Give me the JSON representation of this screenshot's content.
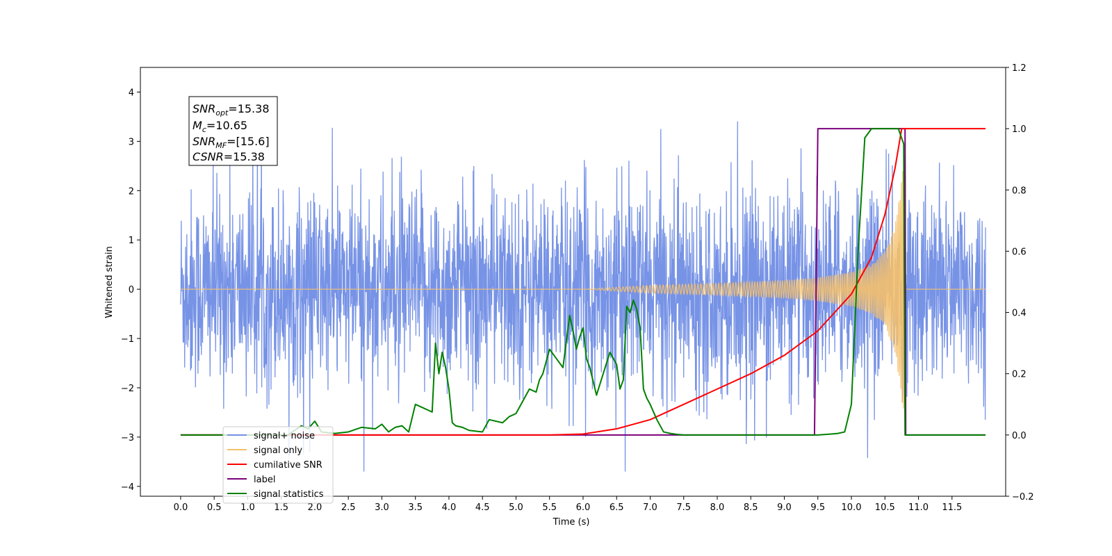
{
  "chart_data": {
    "type": "line",
    "xlabel": "Time (s)",
    "ylabel": "Whitened strain",
    "xlim": [
      -0.6,
      12.3
    ],
    "ylim": [
      -4.2,
      4.5
    ],
    "ylim_right": [
      -0.2,
      1.2
    ],
    "xticks": [
      "0.0",
      "0.5",
      "1.0",
      "1.5",
      "2.0",
      "2.5",
      "3.0",
      "3.5",
      "4.0",
      "4.5",
      "5.0",
      "5.5",
      "6.0",
      "6.5",
      "7.0",
      "7.5",
      "8.0",
      "8.5",
      "9.0",
      "9.5",
      "10.0",
      "10.5",
      "11.0",
      "11.5"
    ],
    "yticks_left": [
      "−4",
      "−3",
      "−2",
      "−1",
      "0",
      "1",
      "2",
      "3",
      "4"
    ],
    "yticks_right": [
      "−0.2",
      "0.0",
      "0.2",
      "0.4",
      "0.6",
      "0.8",
      "1.0",
      "1.2"
    ],
    "grid": false,
    "legend_position": "lower-left",
    "annotation": {
      "line1_sym": "SNR",
      "line1_sub": "opt",
      "line1_val": "=15.38",
      "line2_sym": "M",
      "line2_sub": "c",
      "line2_val": "=10.65",
      "line3_sym": "SNR",
      "line3_sub": "MF",
      "line3_val": "=[15.6]",
      "line4_sym": "CSNR",
      "line4_val": "=15.38"
    },
    "series": [
      {
        "name": "signal+ noise",
        "color": "#7793e6",
        "axis": "left",
        "description_stats": {
          "duration_s": 12.0,
          "std": 1.0
        },
        "x_range": [
          0.0,
          12.0
        ]
      },
      {
        "name": "signal only",
        "color": "#f4c06c",
        "axis": "left",
        "x_range": [
          0.0,
          12.0
        ],
        "envelope": {
          "x": [
            0.0,
            6.0,
            7.0,
            8.0,
            9.0,
            9.5,
            10.0,
            10.3,
            10.5,
            10.65,
            10.75,
            10.8,
            10.81,
            12.0
          ],
          "amp": [
            0.0,
            0.0,
            0.08,
            0.12,
            0.18,
            0.24,
            0.35,
            0.5,
            0.75,
            1.3,
            2.2,
            3.1,
            0.0,
            0.0
          ]
        }
      },
      {
        "name": "cumilative SNR",
        "color": "#ff0000",
        "axis": "right",
        "x": [
          0.0,
          5.5,
          6.0,
          6.5,
          7.0,
          7.5,
          8.0,
          8.5,
          9.0,
          9.5,
          10.0,
          10.3,
          10.5,
          10.65,
          10.75,
          10.8,
          12.0
        ],
        "y": [
          0.0,
          0.0,
          0.003,
          0.02,
          0.05,
          0.1,
          0.15,
          0.2,
          0.26,
          0.34,
          0.46,
          0.58,
          0.72,
          0.87,
          1.0,
          1.0,
          1.0
        ]
      },
      {
        "name": "label",
        "color": "#7b007b",
        "axis": "right",
        "x": [
          0.0,
          9.45,
          9.5,
          10.8,
          10.81,
          12.0
        ],
        "y": [
          0.0,
          0.0,
          1.0,
          1.0,
          0.0,
          0.0
        ]
      },
      {
        "name": "signal statistics",
        "color": "#008000",
        "axis": "right",
        "x": [
          0.0,
          1.6,
          1.8,
          1.9,
          2.0,
          2.1,
          2.3,
          2.5,
          2.7,
          2.9,
          3.0,
          3.1,
          3.2,
          3.3,
          3.4,
          3.5,
          3.6,
          3.7,
          3.75,
          3.8,
          3.85,
          3.9,
          3.95,
          4.0,
          4.05,
          4.1,
          4.2,
          4.3,
          4.5,
          4.6,
          4.8,
          4.9,
          5.0,
          5.1,
          5.2,
          5.3,
          5.35,
          5.4,
          5.5,
          5.6,
          5.7,
          5.8,
          5.85,
          5.9,
          5.95,
          6.0,
          6.05,
          6.1,
          6.2,
          6.3,
          6.4,
          6.5,
          6.55,
          6.6,
          6.65,
          6.7,
          6.75,
          6.8,
          6.85,
          6.9,
          6.95,
          7.0,
          7.1,
          7.2,
          7.3,
          7.4,
          7.5,
          8.0,
          8.5,
          9.0,
          9.5,
          9.7,
          9.8,
          9.9,
          10.0,
          10.1,
          10.2,
          10.3,
          10.5,
          10.7,
          10.78,
          10.8,
          12.0
        ],
        "y": [
          0.0,
          0.0,
          0.03,
          0.02,
          0.045,
          0.01,
          0.005,
          0.01,
          0.025,
          0.02,
          0.035,
          0.01,
          0.025,
          0.03,
          0.01,
          0.1,
          0.09,
          0.08,
          0.075,
          0.3,
          0.2,
          0.27,
          0.22,
          0.15,
          0.04,
          0.03,
          0.025,
          0.015,
          0.01,
          0.05,
          0.04,
          0.06,
          0.07,
          0.11,
          0.15,
          0.14,
          0.18,
          0.2,
          0.28,
          0.25,
          0.22,
          0.39,
          0.34,
          0.28,
          0.32,
          0.35,
          0.25,
          0.22,
          0.13,
          0.2,
          0.27,
          0.23,
          0.15,
          0.18,
          0.42,
          0.4,
          0.44,
          0.41,
          0.35,
          0.15,
          0.12,
          0.1,
          0.05,
          0.01,
          0.005,
          0.002,
          0.0,
          0.0,
          0.0,
          0.0,
          0.0,
          0.003,
          0.005,
          0.01,
          0.1,
          0.6,
          0.97,
          1.0,
          1.0,
          1.0,
          0.95,
          0.0,
          0.0
        ]
      }
    ]
  },
  "legend": {
    "item1": "signal+ noise",
    "item2": "signal only",
    "item3": "cumilative SNR",
    "item4": "label",
    "item5": "signal statistics"
  }
}
